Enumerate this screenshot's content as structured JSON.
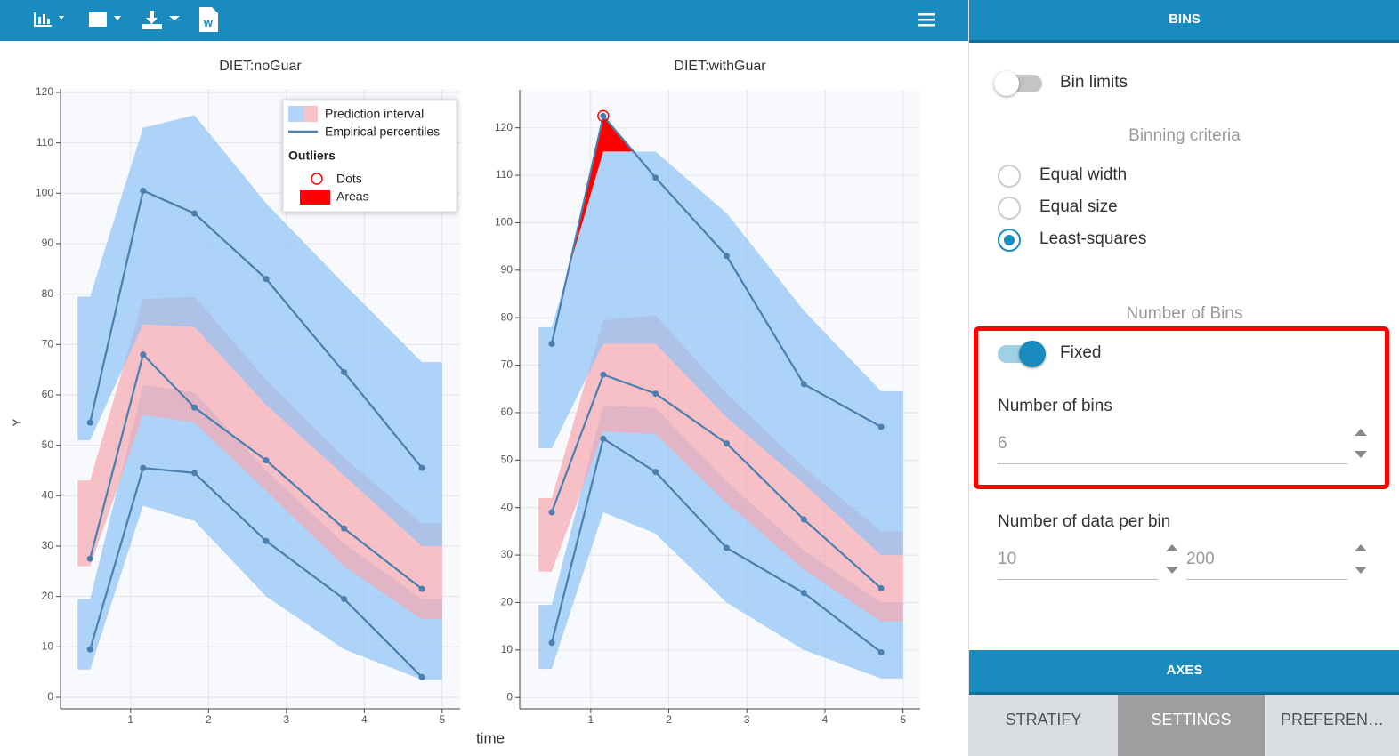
{
  "chart_data": [
    {
      "type": "vpc",
      "title": "DIET:noGuar",
      "ylabel": "Y",
      "xlabel": "time",
      "xlim": [
        0.1,
        5.23
      ],
      "ylim": [
        -2.3,
        120.7
      ],
      "xticks": [
        1,
        2,
        3,
        4,
        5
      ],
      "yticks": [
        0,
        10,
        20,
        30,
        40,
        50,
        60,
        70,
        80,
        90,
        100,
        110,
        120
      ],
      "grid": true,
      "x": [
        0.48,
        1.16,
        1.82,
        2.74,
        3.74,
        4.74
      ],
      "band_edges": [
        0.32,
        5.0
      ],
      "bands": [
        {
          "color": "#8fc3f7",
          "lower": [
            5.5,
            38,
            35,
            20,
            9.5,
            3.5
          ],
          "upper": [
            19.5,
            62,
            60.5,
            45,
            30.5,
            19.5
          ]
        },
        {
          "color": "#f7a8b0",
          "lower": [
            26,
            56,
            54.5,
            41,
            26,
            15.5
          ],
          "upper": [
            43,
            79,
            79.5,
            63,
            47.5,
            34.5
          ]
        },
        {
          "color": "#8fc3f7",
          "lower": [
            51,
            74,
            73.5,
            58,
            44,
            30
          ],
          "upper": [
            79.5,
            113,
            115.5,
            98,
            82,
            66.5
          ]
        }
      ],
      "series": [
        {
          "color": "#4a7fb0",
          "values": [
            9.5,
            45.5,
            44.5,
            31,
            19.5,
            4
          ]
        },
        {
          "color": "#4a7fb0",
          "values": [
            27.5,
            68,
            57.5,
            47,
            33.5,
            21.5
          ]
        },
        {
          "color": "#4a7fb0",
          "values": [
            54.5,
            100.5,
            96,
            83,
            64.5,
            45.5
          ]
        }
      ],
      "outlier_color": "#ff0000",
      "legend": {
        "prediction_interval": "Prediction interval",
        "empirical": "Empirical percentiles",
        "outliers": "Outliers",
        "dots": "Dots",
        "areas": "Areas"
      }
    },
    {
      "type": "vpc",
      "title": "DIET:withGuar",
      "xlim": [
        0.09,
        5.22
      ],
      "ylim": [
        -2.4,
        128
      ],
      "xticks": [
        1,
        2,
        3,
        4,
        5
      ],
      "yticks": [
        0,
        10,
        20,
        30,
        40,
        50,
        60,
        70,
        80,
        90,
        100,
        110,
        120
      ],
      "grid": true,
      "x": [
        0.5,
        1.16,
        1.83,
        2.74,
        3.73,
        4.72
      ],
      "band_edges": [
        0.33,
        5.0
      ],
      "bands": [
        {
          "color": "#8fc3f7",
          "lower": [
            6,
            39,
            34.5,
            20,
            10,
            4
          ],
          "upper": [
            19.5,
            61.5,
            61,
            45.5,
            31,
            20
          ]
        },
        {
          "color": "#f7a8b0",
          "lower": [
            26.5,
            56,
            55.5,
            41,
            27,
            16
          ],
          "upper": [
            42,
            79.5,
            80.5,
            64,
            48.5,
            35
          ]
        },
        {
          "color": "#8fc3f7",
          "lower": [
            52.5,
            74.5,
            74.5,
            59,
            45,
            30
          ],
          "upper": [
            78,
            115,
            115,
            102,
            81.5,
            64.5
          ]
        }
      ],
      "series": [
        {
          "color": "#4a7fb0",
          "values": [
            11.5,
            54.5,
            47.5,
            31.5,
            22,
            9.5
          ]
        },
        {
          "color": "#4a7fb0",
          "values": [
            39,
            68,
            64,
            53.5,
            37.5,
            23
          ]
        },
        {
          "color": "#4a7fb0",
          "values": [
            74.5,
            122.5,
            109.5,
            93,
            66,
            57
          ]
        }
      ],
      "outlier_color": "#ff0000"
    }
  ],
  "sidebar": {
    "header": "BINS",
    "bin_limits": "Bin limits",
    "bin_limits_on": false,
    "binning_criteria": "Binning criteria",
    "options": [
      "Equal width",
      "Equal size",
      "Least-squares"
    ],
    "selected": 2,
    "number_of_bins_title": "Number of Bins",
    "fixed": "Fixed",
    "fixed_on": true,
    "number_of_bins_label": "Number of bins",
    "number_of_bins_value": "6",
    "data_per_bin_label": "Number of data per bin",
    "data_per_bin_min": "10",
    "data_per_bin_max": "200",
    "axes": "AXES",
    "tabs": [
      "STRATIFY",
      "SETTINGS",
      "PREFEREN…"
    ],
    "active_tab": 1
  }
}
